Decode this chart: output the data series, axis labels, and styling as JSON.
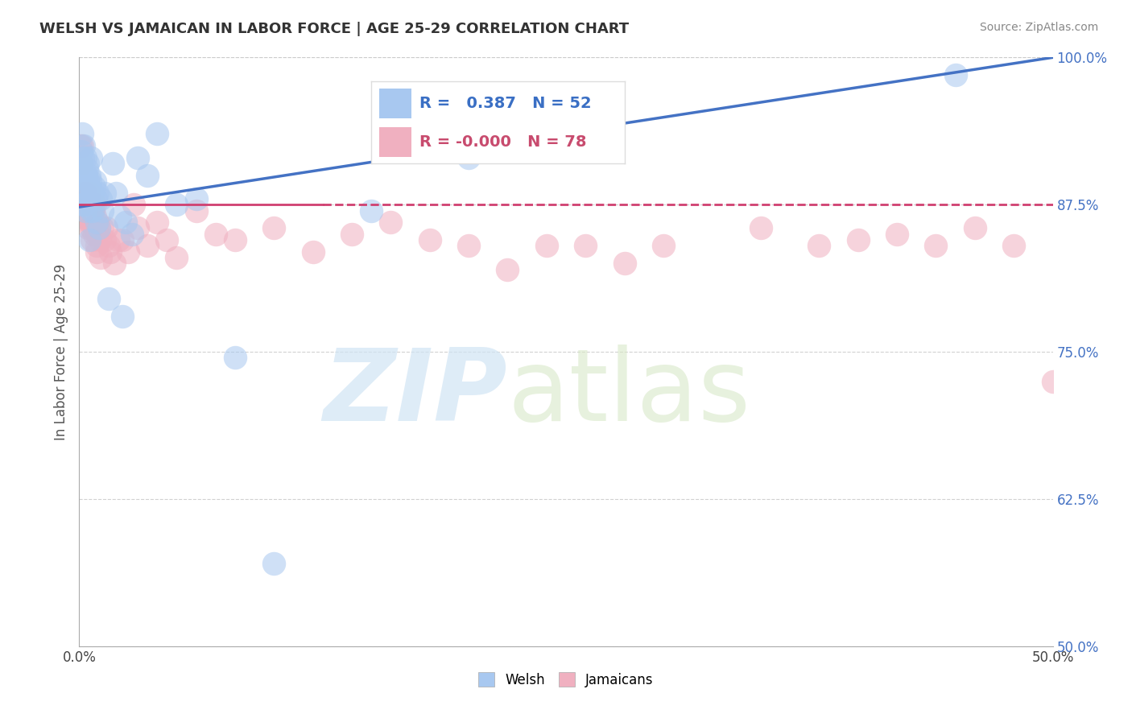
{
  "title": "WELSH VS JAMAICAN IN LABOR FORCE | AGE 25-29 CORRELATION CHART",
  "source": "Source: ZipAtlas.com",
  "ylabel": "In Labor Force | Age 25-29",
  "xlim": [
    0.0,
    50.0
  ],
  "ylim": [
    50.0,
    100.0
  ],
  "yticks": [
    50.0,
    62.5,
    75.0,
    87.5,
    100.0
  ],
  "xticks": [
    0.0,
    6.25,
    12.5,
    18.75,
    25.0,
    31.25,
    37.5,
    43.75,
    50.0
  ],
  "xtick_labels": [
    "0.0%",
    "",
    "",
    "",
    "",
    "",
    "",
    "",
    "50.0%"
  ],
  "ytick_labels": [
    "50.0%",
    "62.5%",
    "75.0%",
    "87.5%",
    "100.0%"
  ],
  "welsh_R": "0.387",
  "welsh_N": "52",
  "jamaican_R": "-0.000",
  "jamaican_N": "78",
  "legend_labels": [
    "Welsh",
    "Jamaicans"
  ],
  "welsh_color": "#a8c8f0",
  "jamaican_color": "#f0b0c0",
  "welsh_line_color": "#4472c4",
  "jamaican_line_color": "#d04070",
  "watermark_text": "ZIPatlas",
  "watermark_color": "#d0e4f4",
  "background_color": "#ffffff",
  "welsh_trend_x0": 0.0,
  "welsh_trend_y0": 87.3,
  "welsh_trend_x1": 50.0,
  "welsh_trend_y1": 100.0,
  "jamaican_trend_x0": 0.0,
  "jamaican_trend_y0": 87.5,
  "jamaican_trend_x1": 50.0,
  "jamaican_trend_y1": 87.5,
  "welsh_x": [
    0.1,
    0.12,
    0.15,
    0.18,
    0.2,
    0.22,
    0.25,
    0.28,
    0.3,
    0.32,
    0.35,
    0.38,
    0.4,
    0.42,
    0.45,
    0.48,
    0.5,
    0.55,
    0.58,
    0.6,
    0.62,
    0.65,
    0.7,
    0.75,
    0.8,
    0.85,
    0.9,
    0.95,
    1.0,
    1.1,
    1.2,
    1.3,
    1.5,
    1.7,
    1.9,
    2.1,
    2.4,
    2.7,
    3.0,
    3.5,
    4.0,
    5.0,
    6.0,
    8.0,
    10.0,
    15.0,
    20.0,
    2.2,
    0.68,
    0.52,
    0.33,
    45.0
  ],
  "welsh_y": [
    91.0,
    92.0,
    93.5,
    87.5,
    91.5,
    92.5,
    89.0,
    87.5,
    91.5,
    89.5,
    90.0,
    88.5,
    90.5,
    91.0,
    89.5,
    88.5,
    90.0,
    88.0,
    89.5,
    91.5,
    87.0,
    88.5,
    87.0,
    89.0,
    89.5,
    88.0,
    86.0,
    88.5,
    85.5,
    88.0,
    87.0,
    88.5,
    79.5,
    91.0,
    88.5,
    86.5,
    86.0,
    85.0,
    91.5,
    90.0,
    93.5,
    87.5,
    88.0,
    74.5,
    57.0,
    87.0,
    91.5,
    78.0,
    88.5,
    84.5,
    87.0,
    98.5
  ],
  "jamaican_x": [
    0.05,
    0.07,
    0.09,
    0.12,
    0.14,
    0.16,
    0.18,
    0.2,
    0.22,
    0.25,
    0.27,
    0.3,
    0.32,
    0.35,
    0.37,
    0.4,
    0.42,
    0.45,
    0.47,
    0.5,
    0.53,
    0.55,
    0.58,
    0.6,
    0.62,
    0.65,
    0.68,
    0.7,
    0.72,
    0.75,
    0.78,
    0.8,
    0.83,
    0.85,
    0.88,
    0.9,
    0.93,
    0.95,
    1.0,
    1.05,
    1.1,
    1.2,
    1.3,
    1.4,
    1.5,
    1.6,
    1.8,
    2.0,
    2.2,
    2.5,
    2.8,
    3.0,
    3.5,
    4.0,
    4.5,
    5.0,
    6.0,
    7.0,
    8.0,
    10.0,
    12.0,
    14.0,
    16.0,
    18.0,
    20.0,
    22.0,
    24.0,
    26.0,
    28.0,
    30.0,
    35.0,
    38.0,
    40.0,
    42.0,
    44.0,
    46.0,
    48.0,
    50.0
  ],
  "jamaican_y": [
    92.5,
    88.0,
    87.5,
    91.0,
    92.5,
    86.5,
    88.5,
    87.0,
    87.5,
    86.5,
    87.5,
    87.0,
    88.5,
    87.5,
    86.5,
    88.0,
    85.5,
    86.5,
    87.5,
    88.5,
    86.0,
    87.5,
    86.0,
    85.5,
    87.5,
    84.5,
    86.0,
    86.5,
    87.0,
    86.0,
    85.0,
    86.5,
    87.5,
    85.5,
    84.0,
    83.5,
    85.0,
    86.0,
    85.5,
    84.5,
    83.0,
    85.5,
    84.5,
    85.5,
    84.0,
    83.5,
    82.5,
    84.5,
    84.5,
    83.5,
    87.5,
    85.5,
    84.0,
    86.0,
    84.5,
    83.0,
    87.0,
    85.0,
    84.5,
    85.5,
    83.5,
    85.0,
    86.0,
    84.5,
    84.0,
    82.0,
    84.0,
    84.0,
    82.5,
    84.0,
    85.5,
    84.0,
    84.5,
    85.0,
    84.0,
    85.5,
    84.0,
    72.5
  ]
}
